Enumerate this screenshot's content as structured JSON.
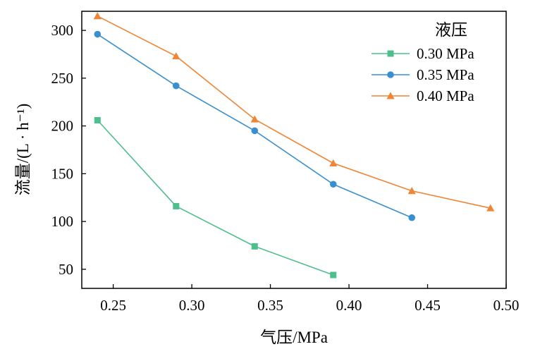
{
  "chart_data": {
    "type": "line",
    "xlabel": "气压/MPa",
    "ylabel": "流量/(L · h⁻¹)",
    "xlim": [
      0.23,
      0.5
    ],
    "ylim": [
      30,
      320
    ],
    "xticks": [
      0.25,
      0.3,
      0.35,
      0.4,
      0.45,
      0.5
    ],
    "xtick_labels": [
      "0.25",
      "0.30",
      "0.35",
      "0.40",
      "0.45",
      "0.50"
    ],
    "yticks": [
      50,
      100,
      150,
      200,
      250,
      300
    ],
    "ytick_labels": [
      "50",
      "100",
      "150",
      "200",
      "250",
      "300"
    ],
    "grid": false,
    "legend": {
      "title": "液压",
      "placement": "top-right"
    },
    "series": [
      {
        "name": "0.30 MPa",
        "color": "#4dbf8c",
        "marker": "square",
        "x": [
          0.24,
          0.29,
          0.34,
          0.39
        ],
        "y": [
          206,
          116,
          74,
          44
        ]
      },
      {
        "name": "0.35 MPa",
        "color": "#3a8fcf",
        "marker": "circle",
        "x": [
          0.24,
          0.29,
          0.34,
          0.39,
          0.44
        ],
        "y": [
          296,
          242,
          195,
          139,
          104
        ]
      },
      {
        "name": "0.40 MPa",
        "color": "#ef8535",
        "marker": "triangle",
        "x": [
          0.24,
          0.29,
          0.34,
          0.39,
          0.44,
          0.49
        ],
        "y": [
          315,
          273,
          207,
          161,
          132,
          114
        ]
      }
    ]
  }
}
